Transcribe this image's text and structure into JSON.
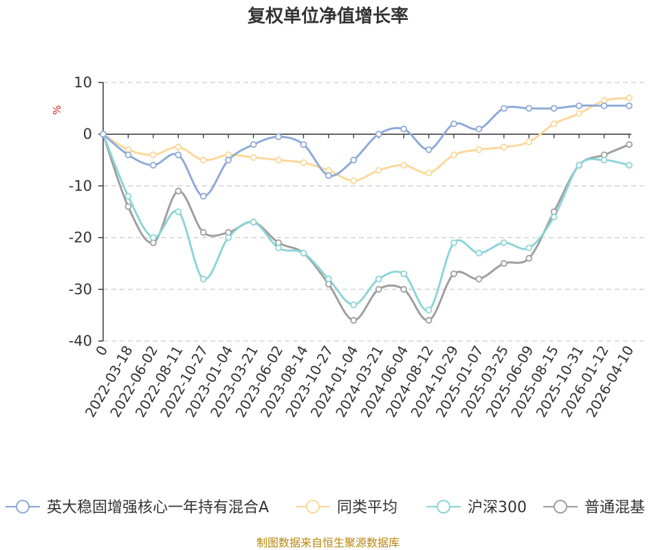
{
  "chart_data": {
    "type": "line",
    "title": "复权单位净值增长率",
    "ylabel": "%",
    "xlabel": "",
    "ylim": [
      -40,
      10
    ],
    "yticks": [
      10,
      0,
      -10,
      -20,
      -30,
      -40
    ],
    "categories": [
      "0",
      "2022-03-18",
      "2022-06-02",
      "2022-08-11",
      "2022-10-27",
      "2023-01-04",
      "2023-03-21",
      "2023-06-02",
      "2023-08-14",
      "2023-10-27",
      "2024-01-04",
      "2024-03-21",
      "2024-06-04",
      "2024-08-12",
      "2024-10-29",
      "2025-01-07",
      "2025-03-25",
      "2025-06-09",
      "2025-08-15",
      "2025-10-31",
      "2026-01-12",
      "2026-04-10"
    ],
    "series": [
      {
        "name": "英大稳固增强核心一年持有混合A",
        "color": "#8eaad8",
        "values": [
          0,
          -4,
          -6,
          -4,
          -12,
          -5,
          -2,
          -0.5,
          -2,
          -8,
          -5,
          0,
          1,
          -3,
          2,
          1,
          5,
          5,
          5,
          5.5,
          5.5,
          5.5
        ]
      },
      {
        "name": "同类平均",
        "color": "#fcd79a",
        "values": [
          0,
          -3,
          -4,
          -2.5,
          -5,
          -4,
          -4.5,
          -5,
          -5.5,
          -7,
          -9,
          -7,
          -6,
          -7.5,
          -4,
          -3,
          -2.5,
          -1.5,
          2,
          4,
          6.5,
          7
        ]
      },
      {
        "name": "沪深300",
        "color": "#8dd4d8",
        "values": [
          0,
          -12,
          -20,
          -15,
          -28,
          -20,
          -17,
          -22,
          -23,
          -28,
          -33,
          -28,
          -27,
          -34,
          -21,
          -23,
          -21,
          -22,
          -16,
          -6,
          -5,
          -6
        ]
      },
      {
        "name": "普通混基",
        "color": "#9e9e9e",
        "values": [
          0,
          -14,
          -21,
          -11,
          -19,
          -19,
          -17,
          -21,
          -23,
          -29,
          -36,
          -30,
          -30,
          -36,
          -27,
          -28,
          -25,
          -24,
          -15,
          -6,
          -4,
          -2
        ]
      }
    ]
  },
  "source_text": "制图数据来自恒生聚源数据库"
}
